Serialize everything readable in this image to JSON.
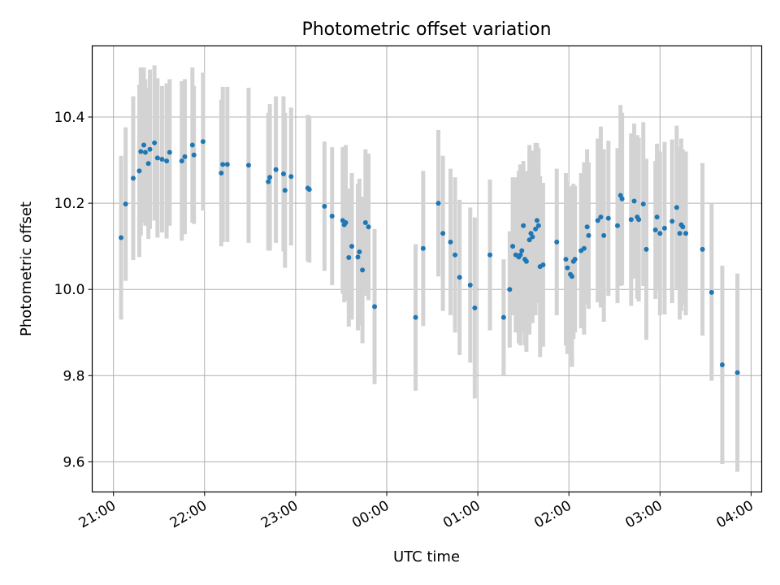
{
  "chart_data": {
    "type": "scatter",
    "title": "Photometric offset variation",
    "xlabel": "UTC time",
    "ylabel": "Photometric offset",
    "grid": true,
    "xlim": [
      "20:46",
      "04:07"
    ],
    "ylim": [
      9.53,
      10.565
    ],
    "xticks": [
      "21:00",
      "22:00",
      "23:00",
      "00:00",
      "01:00",
      "02:00",
      "03:00",
      "04:00"
    ],
    "yticks": [
      "9.6",
      "9.8",
      "10.0",
      "10.2",
      "10.4"
    ],
    "colors": {
      "point": "#1f77b4",
      "errorbar": "#d3d3d3",
      "grid": "#b0b0b0"
    },
    "series": [
      {
        "errorbar_columns": [
          "time",
          "offset",
          "error"
        ],
        "points": [
          [
            "21:05",
            10.12,
            0.19
          ],
          [
            "21:08",
            10.198,
            0.178
          ],
          [
            "21:13",
            10.258,
            0.19
          ],
          [
            "21:17",
            10.275,
            0.2
          ],
          [
            "21:18",
            10.32,
            0.195
          ],
          [
            "21:20",
            10.335,
            0.18
          ],
          [
            "21:21",
            10.318,
            0.17
          ],
          [
            "21:23",
            10.292,
            0.175
          ],
          [
            "21:24",
            10.325,
            0.185
          ],
          [
            "21:27",
            10.34,
            0.18
          ],
          [
            "21:29",
            10.305,
            0.185
          ],
          [
            "21:32",
            10.302,
            0.17
          ],
          [
            "21:35",
            10.298,
            0.18
          ],
          [
            "21:37",
            10.318,
            0.17
          ],
          [
            "21:45",
            10.298,
            0.185
          ],
          [
            "21:47",
            10.308,
            0.18
          ],
          [
            "21:52",
            10.335,
            0.18
          ],
          [
            "21:53",
            10.312,
            0.16
          ],
          [
            "21:59",
            10.343,
            0.16
          ],
          [
            "22:11",
            10.27,
            0.17
          ],
          [
            "22:12",
            10.29,
            0.18
          ],
          [
            "22:15",
            10.29,
            0.18
          ],
          [
            "22:29",
            10.288,
            0.18
          ],
          [
            "22:42",
            10.25,
            0.16
          ],
          [
            "22:43",
            10.26,
            0.17
          ],
          [
            "22:47",
            10.278,
            0.17
          ],
          [
            "22:52",
            10.268,
            0.18
          ],
          [
            "22:53",
            10.23,
            0.18
          ],
          [
            "22:57",
            10.262,
            0.16
          ],
          [
            "23:08",
            10.235,
            0.17
          ],
          [
            "23:09",
            10.232,
            0.17
          ],
          [
            "23:19",
            10.193,
            0.15
          ],
          [
            "23:24",
            10.17,
            0.16
          ],
          [
            "23:31",
            10.16,
            0.17
          ],
          [
            "23:32",
            10.15,
            0.18
          ],
          [
            "23:33",
            10.155,
            0.18
          ],
          [
            "23:35",
            10.074,
            0.16
          ],
          [
            "23:37",
            10.1,
            0.17
          ],
          [
            "23:41",
            10.075,
            0.17
          ],
          [
            "23:42",
            10.087,
            0.17
          ],
          [
            "23:44",
            10.045,
            0.17
          ],
          [
            "23:46",
            10.155,
            0.17
          ],
          [
            "23:48",
            10.145,
            0.17
          ],
          [
            "23:52",
            9.96,
            0.18
          ],
          [
            "00:19",
            9.935,
            0.17
          ],
          [
            "00:24",
            10.095,
            0.18
          ],
          [
            "00:34",
            10.2,
            0.17
          ],
          [
            "00:37",
            10.13,
            0.18
          ],
          [
            "00:42",
            10.11,
            0.17
          ],
          [
            "00:45",
            10.08,
            0.18
          ],
          [
            "00:48",
            10.028,
            0.18
          ],
          [
            "00:55",
            10.01,
            0.18
          ],
          [
            "00:58",
            9.957,
            0.21
          ],
          [
            "01:08",
            10.08,
            0.175
          ],
          [
            "01:17",
            9.935,
            0.135
          ],
          [
            "01:21",
            10.0,
            0.135
          ],
          [
            "01:23",
            10.1,
            0.16
          ],
          [
            "01:25",
            10.08,
            0.18
          ],
          [
            "01:27",
            10.075,
            0.2
          ],
          [
            "01:28",
            10.08,
            0.21
          ],
          [
            "01:29",
            10.09,
            0.19
          ],
          [
            "01:30",
            10.148,
            0.15
          ],
          [
            "01:31",
            10.07,
            0.2
          ],
          [
            "01:32",
            10.065,
            0.21
          ],
          [
            "01:34",
            10.115,
            0.22
          ],
          [
            "01:35",
            10.13,
            0.19
          ],
          [
            "01:36",
            10.122,
            0.2
          ],
          [
            "01:38",
            10.14,
            0.2
          ],
          [
            "01:39",
            10.16,
            0.18
          ],
          [
            "01:40",
            10.148,
            0.18
          ],
          [
            "01:41",
            10.053,
            0.21
          ],
          [
            "01:43",
            10.057,
            0.19
          ],
          [
            "01:52",
            10.11,
            0.17
          ],
          [
            "01:58",
            10.07,
            0.2
          ],
          [
            "01:59",
            10.05,
            0.2
          ],
          [
            "02:01",
            10.035,
            0.2
          ],
          [
            "02:02",
            10.03,
            0.21
          ],
          [
            "02:03",
            10.065,
            0.18
          ],
          [
            "02:04",
            10.07,
            0.17
          ],
          [
            "02:08",
            10.09,
            0.18
          ],
          [
            "02:10",
            10.095,
            0.2
          ],
          [
            "02:12",
            10.145,
            0.18
          ],
          [
            "02:13",
            10.125,
            0.17
          ],
          [
            "02:19",
            10.16,
            0.19
          ],
          [
            "02:21",
            10.168,
            0.21
          ],
          [
            "02:23",
            10.125,
            0.2
          ],
          [
            "02:26",
            10.165,
            0.18
          ],
          [
            "02:32",
            10.148,
            0.18
          ],
          [
            "02:34",
            10.218,
            0.21
          ],
          [
            "02:35",
            10.21,
            0.2
          ],
          [
            "02:41",
            10.162,
            0.2
          ],
          [
            "02:43",
            10.205,
            0.18
          ],
          [
            "02:45",
            10.168,
            0.19
          ],
          [
            "02:46",
            10.162,
            0.19
          ],
          [
            "02:49",
            10.198,
            0.19
          ],
          [
            "02:51",
            10.093,
            0.21
          ],
          [
            "02:57",
            10.138,
            0.16
          ],
          [
            "02:58",
            10.168,
            0.17
          ],
          [
            "03:00",
            10.13,
            0.19
          ],
          [
            "03:03",
            10.142,
            0.2
          ],
          [
            "03:08",
            10.158,
            0.19
          ],
          [
            "03:11",
            10.19,
            0.19
          ],
          [
            "03:13",
            10.13,
            0.2
          ],
          [
            "03:14",
            10.15,
            0.2
          ],
          [
            "03:15",
            10.145,
            0.18
          ],
          [
            "03:17",
            10.13,
            0.19
          ],
          [
            "03:28",
            10.093,
            0.2
          ],
          [
            "03:34",
            9.993,
            0.205
          ],
          [
            "03:41",
            9.825,
            0.23
          ],
          [
            "03:51",
            9.807,
            0.23
          ]
        ]
      }
    ]
  }
}
